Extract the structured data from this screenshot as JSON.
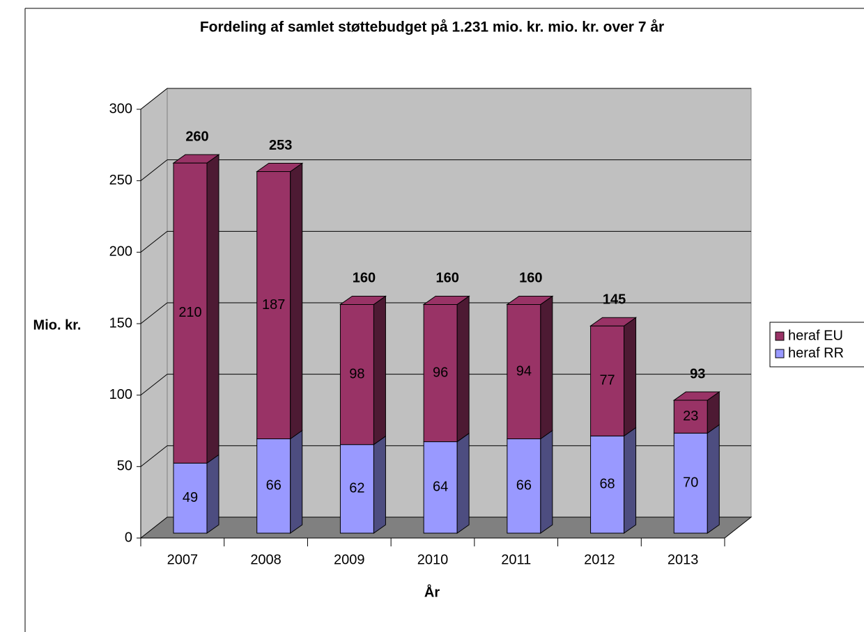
{
  "chart_data": {
    "type": "bar3d_stacked",
    "title": "Fordeling af samlet støttebudget på 1.231 mio. kr. mio. kr. over 7 år",
    "x_label": "År",
    "y_label": "Mio. kr.",
    "categories": [
      "2007",
      "2008",
      "2009",
      "2010",
      "2011",
      "2012",
      "2013"
    ],
    "series": [
      {
        "name": "heraf RR",
        "color": "#9999ff",
        "values": [
          49,
          66,
          62,
          64,
          66,
          68,
          70
        ]
      },
      {
        "name": "heraf EU",
        "color": "#993366",
        "values": [
          210,
          187,
          98,
          96,
          94,
          77,
          23
        ]
      }
    ],
    "totals": [
      260,
      253,
      160,
      160,
      160,
      145,
      93
    ],
    "ylim": [
      0,
      300
    ],
    "yticks": [
      0,
      50,
      100,
      150,
      200,
      250,
      300
    ],
    "grid": true,
    "legend": "right"
  }
}
